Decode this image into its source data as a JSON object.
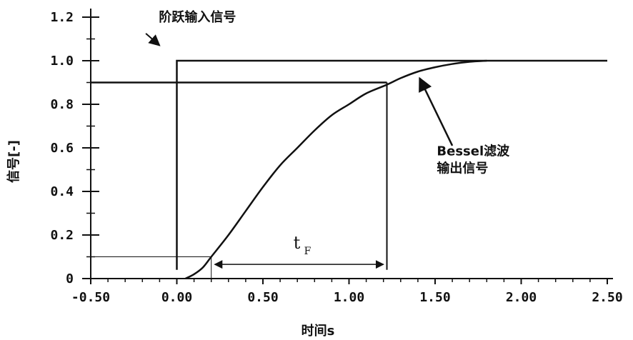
{
  "chart_data": {
    "type": "line",
    "title": "",
    "xlabel": "时间s",
    "ylabel": "信号[-]",
    "xlim": [
      -0.5,
      2.5
    ],
    "ylim": [
      0,
      1.2
    ],
    "x_ticks": [
      {
        "value": -0.5,
        "label": "-0.50"
      },
      {
        "value": 0.0,
        "label": "0.00"
      },
      {
        "value": 0.5,
        "label": "0.50"
      },
      {
        "value": 1.0,
        "label": "1.00"
      },
      {
        "value": 1.5,
        "label": "1.50"
      },
      {
        "value": 2.0,
        "label": "2.00"
      },
      {
        "value": 2.5,
        "label": "2.50"
      }
    ],
    "y_ticks": [
      {
        "value": 0.0,
        "label": "0"
      },
      {
        "value": 0.2,
        "label": "0.2"
      },
      {
        "value": 0.4,
        "label": "0.4"
      },
      {
        "value": 0.6,
        "label": "0.6"
      },
      {
        "value": 0.8,
        "label": "0.8"
      },
      {
        "value": 1.0,
        "label": "1.0"
      },
      {
        "value": 1.2,
        "label": "1.2"
      }
    ],
    "grid": false,
    "series": [
      {
        "name": "阶跃输入信号",
        "x": [
          0.0,
          0.0,
          2.5
        ],
        "y": [
          0.04,
          1.0,
          1.0
        ]
      },
      {
        "name": "Bessel滤波输出信号",
        "x": [
          0.05,
          0.1,
          0.15,
          0.2,
          0.3,
          0.4,
          0.5,
          0.6,
          0.7,
          0.8,
          0.9,
          1.0,
          1.1,
          1.22,
          1.3,
          1.4,
          1.5,
          1.6,
          1.7,
          1.8
        ],
        "y": [
          0.0,
          0.02,
          0.05,
          0.1,
          0.2,
          0.31,
          0.42,
          0.52,
          0.6,
          0.68,
          0.75,
          0.8,
          0.85,
          0.89,
          0.92,
          0.95,
          0.97,
          0.985,
          0.995,
          1.0
        ]
      }
    ],
    "reference_lines": {
      "h90": {
        "y": 0.9,
        "x_from": -0.5,
        "x_to": 1.22
      },
      "h10": {
        "y": 0.1,
        "x_from": -0.5,
        "x_to": 0.2
      },
      "v90": {
        "x": 1.22,
        "y_from": 0.04,
        "y_to": 0.9
      },
      "v10": {
        "x": 0.2,
        "y_from": 0.0,
        "y_to": 0.1
      }
    },
    "rise_time": {
      "label": "t",
      "subscript": "F",
      "x_from": 0.22,
      "x_to": 1.2,
      "y": 0.065
    },
    "annotations": {
      "step": {
        "text": "阶跃输入信号",
        "x": 0.12,
        "y": 1.2,
        "arrow_from": [
          -0.18,
          1.125
        ],
        "arrow_to": [
          -0.1,
          1.07
        ]
      },
      "bessel": {
        "line1": "Bessel滤波",
        "line2": "输出信号",
        "x": 1.51,
        "y": 0.565,
        "arrow_from": [
          1.6,
          0.61
        ],
        "arrow_to": [
          1.41,
          0.92
        ]
      }
    }
  }
}
